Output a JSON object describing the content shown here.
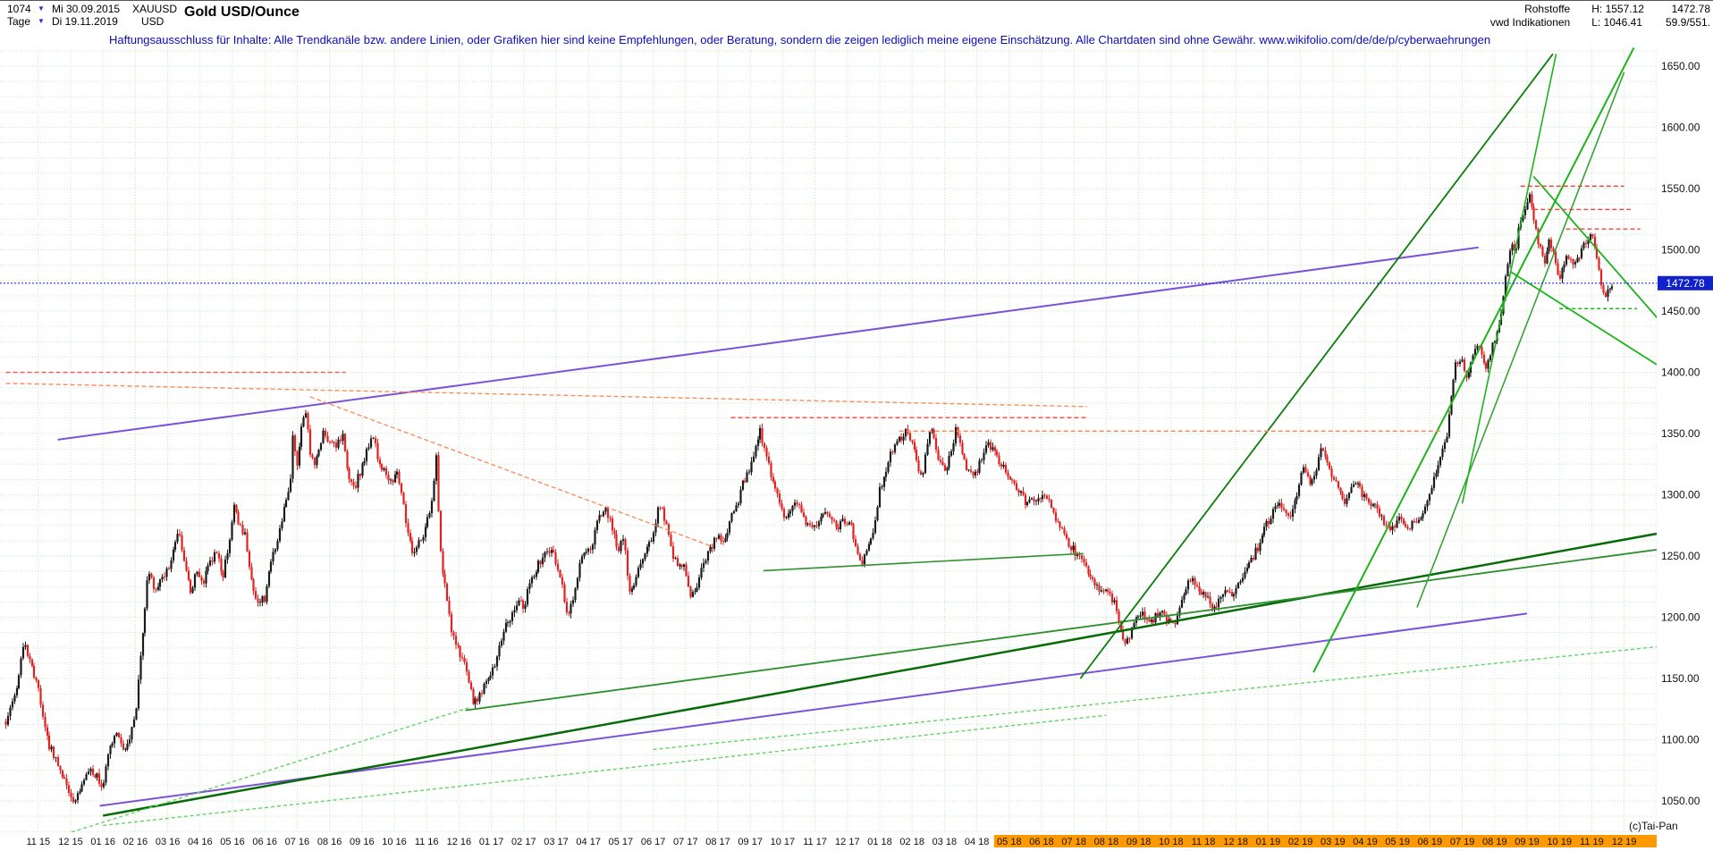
{
  "header": {
    "bar_count": "1074",
    "start_date": "Mi 30.09.2015",
    "symbol": "XAUUSD",
    "title": "Gold USD/Ounce",
    "period": "Tage",
    "end_date": "Di 19.11.2019",
    "currency": "USD",
    "category": "Rohstoffe",
    "source": "vwd Indikationen",
    "high": "H: 1557.12",
    "low": "L: 1046.41",
    "last": "1472.78",
    "bid_ask": "59.9/551."
  },
  "disclaimer": "Haftungsausschluss für Inhalte: Alle Trendkanäle bzw. andere Linien, oder Grafiken hier sind keine Empfehlungen, oder Beratung, sondern die zeigen lediglich meine eigene Einschätzung. Alle Chartdaten sind ohne Gewähr.  www.wikifolio.com/de/de/p/cyberwaehrungen",
  "watermark": "(c)Tai-Pan",
  "chart_data": {
    "type": "candlestick",
    "symbol": "XAUUSD",
    "title": "Gold USD/Ounce",
    "timeframe": "Tage (daily)",
    "date_range": [
      "2015-09-30",
      "2019-11-19"
    ],
    "high": 1557.12,
    "low": 1046.41,
    "last": 1472.78,
    "last_label": "1472.78",
    "y_axis": {
      "min": 1050,
      "max": 1650,
      "tick_step": 50,
      "minor_step": 12.5,
      "labels": [
        "1650.00",
        "1600.00",
        "1550.00",
        "1500.00",
        "1450.00",
        "1400.00",
        "1350.00",
        "1300.00",
        "1250.00",
        "1200.00",
        "1150.00",
        "1100.00",
        "1050.00"
      ]
    },
    "x_axis": {
      "unit_note": "t in months; t=1 corresponds to label '11 15' (Nov 2015)",
      "labels": [
        "11 15",
        "12 15",
        "01 16",
        "02 16",
        "03 16",
        "04 16",
        "05 16",
        "06 16",
        "07 16",
        "08 16",
        "09 16",
        "10 16",
        "11 16",
        "12 16",
        "01 17",
        "02 17",
        "03 17",
        "04 17",
        "05 17",
        "06 17",
        "07 17",
        "08 17",
        "09 17",
        "10 17",
        "11 17",
        "12 17",
        "01 18",
        "02 18",
        "03 18",
        "04 18",
        "05 18",
        "06 18",
        "07 18",
        "08 18",
        "09 18",
        "10 18",
        "11 18",
        "12 18",
        "01 19",
        "02 19",
        "03 19",
        "04 19",
        "05 19",
        "06 19",
        "07 19",
        "08 19",
        "09 19",
        "10 19",
        "11 19",
        "12 19"
      ],
      "highlight_from_index": 30
    },
    "price_anchors": [
      [
        0,
        1115
      ],
      [
        0.3,
        1138
      ],
      [
        0.55,
        1180
      ],
      [
        0.8,
        1160
      ],
      [
        1,
        1142
      ],
      [
        1.3,
        1098
      ],
      [
        1.6,
        1080
      ],
      [
        1.9,
        1062
      ],
      [
        2.15,
        1048
      ],
      [
        2.4,
        1068
      ],
      [
        2.6,
        1078
      ],
      [
        2.8,
        1070
      ],
      [
        3,
        1062
      ],
      [
        3.2,
        1092
      ],
      [
        3.4,
        1108
      ],
      [
        3.6,
        1090
      ],
      [
        3.8,
        1098
      ],
      [
        4,
        1120
      ],
      [
        4.2,
        1180
      ],
      [
        4.4,
        1242
      ],
      [
        4.6,
        1222
      ],
      [
        4.8,
        1232
      ],
      [
        5,
        1238
      ],
      [
        5.2,
        1258
      ],
      [
        5.35,
        1270
      ],
      [
        5.5,
        1244
      ],
      [
        5.7,
        1222
      ],
      [
        5.9,
        1236
      ],
      [
        6.1,
        1228
      ],
      [
        6.3,
        1244
      ],
      [
        6.5,
        1256
      ],
      [
        6.7,
        1232
      ],
      [
        6.9,
        1262
      ],
      [
        7.05,
        1290
      ],
      [
        7.2,
        1276
      ],
      [
        7.4,
        1266
      ],
      [
        7.6,
        1228
      ],
      [
        7.8,
        1212
      ],
      [
        8,
        1216
      ],
      [
        8.2,
        1246
      ],
      [
        8.4,
        1262
      ],
      [
        8.6,
        1288
      ],
      [
        8.8,
        1310
      ],
      [
        8.87,
        1352
      ],
      [
        9,
        1322
      ],
      [
        9.15,
        1360
      ],
      [
        9.25,
        1370
      ],
      [
        9.4,
        1336
      ],
      [
        9.55,
        1324
      ],
      [
        9.7,
        1342
      ],
      [
        9.85,
        1352
      ],
      [
        10,
        1342
      ],
      [
        10.2,
        1338
      ],
      [
        10.4,
        1348
      ],
      [
        10.6,
        1316
      ],
      [
        10.8,
        1308
      ],
      [
        11,
        1322
      ],
      [
        11.2,
        1340
      ],
      [
        11.35,
        1348
      ],
      [
        11.5,
        1330
      ],
      [
        11.7,
        1318
      ],
      [
        11.9,
        1312
      ],
      [
        12.1,
        1318
      ],
      [
        12.25,
        1302
      ],
      [
        12.4,
        1268
      ],
      [
        12.6,
        1252
      ],
      [
        12.8,
        1262
      ],
      [
        13,
        1276
      ],
      [
        13.2,
        1298
      ],
      [
        13.3,
        1332
      ],
      [
        13.4,
        1258
      ],
      [
        13.6,
        1218
      ],
      [
        13.8,
        1186
      ],
      [
        14,
        1172
      ],
      [
        14.2,
        1158
      ],
      [
        14.45,
        1130
      ],
      [
        14.7,
        1138
      ],
      [
        14.9,
        1152
      ],
      [
        15.1,
        1158
      ],
      [
        15.35,
        1188
      ],
      [
        15.6,
        1200
      ],
      [
        15.8,
        1214
      ],
      [
        16,
        1208
      ],
      [
        16.2,
        1228
      ],
      [
        16.4,
        1240
      ],
      [
        16.6,
        1250
      ],
      [
        16.8,
        1256
      ],
      [
        17,
        1246
      ],
      [
        17.2,
        1226
      ],
      [
        17.35,
        1200
      ],
      [
        17.55,
        1218
      ],
      [
        17.75,
        1246
      ],
      [
        17.9,
        1252
      ],
      [
        18.1,
        1254
      ],
      [
        18.3,
        1282
      ],
      [
        18.5,
        1290
      ],
      [
        18.7,
        1276
      ],
      [
        18.9,
        1254
      ],
      [
        19.1,
        1266
      ],
      [
        19.25,
        1220
      ],
      [
        19.4,
        1226
      ],
      [
        19.6,
        1242
      ],
      [
        19.8,
        1256
      ],
      [
        20,
        1266
      ],
      [
        20.2,
        1294
      ],
      [
        20.4,
        1276
      ],
      [
        20.6,
        1250
      ],
      [
        20.8,
        1242
      ],
      [
        21,
        1240
      ],
      [
        21.15,
        1214
      ],
      [
        21.35,
        1226
      ],
      [
        21.6,
        1248
      ],
      [
        21.8,
        1258
      ],
      [
        22,
        1268
      ],
      [
        22.2,
        1258
      ],
      [
        22.4,
        1282
      ],
      [
        22.6,
        1292
      ],
      [
        22.8,
        1312
      ],
      [
        23,
        1322
      ],
      [
        23.15,
        1338
      ],
      [
        23.3,
        1352
      ],
      [
        23.5,
        1334
      ],
      [
        23.7,
        1310
      ],
      [
        23.9,
        1294
      ],
      [
        24.1,
        1278
      ],
      [
        24.3,
        1290
      ],
      [
        24.5,
        1296
      ],
      [
        24.7,
        1278
      ],
      [
        24.9,
        1270
      ],
      [
        25.1,
        1276
      ],
      [
        25.3,
        1286
      ],
      [
        25.5,
        1278
      ],
      [
        25.7,
        1274
      ],
      [
        25.9,
        1280
      ],
      [
        26.1,
        1276
      ],
      [
        26.3,
        1252
      ],
      [
        26.45,
        1240
      ],
      [
        26.6,
        1258
      ],
      [
        26.8,
        1272
      ],
      [
        27,
        1304
      ],
      [
        27.2,
        1320
      ],
      [
        27.4,
        1338
      ],
      [
        27.6,
        1344
      ],
      [
        27.8,
        1354
      ],
      [
        28,
        1340
      ],
      [
        28.15,
        1330
      ],
      [
        28.3,
        1310
      ],
      [
        28.5,
        1348
      ],
      [
        28.65,
        1354
      ],
      [
        28.8,
        1330
      ],
      [
        29,
        1320
      ],
      [
        29.2,
        1332
      ],
      [
        29.35,
        1352
      ],
      [
        29.5,
        1340
      ],
      [
        29.7,
        1322
      ],
      [
        29.9,
        1312
      ],
      [
        30.1,
        1326
      ],
      [
        30.3,
        1344
      ],
      [
        30.5,
        1336
      ],
      [
        30.7,
        1326
      ],
      [
        30.9,
        1318
      ],
      [
        31.1,
        1310
      ],
      [
        31.3,
        1302
      ],
      [
        31.5,
        1294
      ],
      [
        31.7,
        1298
      ],
      [
        31.9,
        1296
      ],
      [
        32.1,
        1300
      ],
      [
        32.3,
        1290
      ],
      [
        32.5,
        1278
      ],
      [
        32.7,
        1268
      ],
      [
        32.9,
        1258
      ],
      [
        33.1,
        1250
      ],
      [
        33.3,
        1244
      ],
      [
        33.5,
        1232
      ],
      [
        33.7,
        1224
      ],
      [
        33.9,
        1222
      ],
      [
        34.1,
        1218
      ],
      [
        34.3,
        1210
      ],
      [
        34.55,
        1176
      ],
      [
        34.7,
        1184
      ],
      [
        34.9,
        1196
      ],
      [
        35.1,
        1202
      ],
      [
        35.3,
        1194
      ],
      [
        35.5,
        1200
      ],
      [
        35.7,
        1206
      ],
      [
        35.9,
        1196
      ],
      [
        36.1,
        1194
      ],
      [
        36.3,
        1212
      ],
      [
        36.5,
        1226
      ],
      [
        36.7,
        1230
      ],
      [
        36.9,
        1222
      ],
      [
        37.1,
        1216
      ],
      [
        37.3,
        1204
      ],
      [
        37.5,
        1214
      ],
      [
        37.7,
        1224
      ],
      [
        37.9,
        1220
      ],
      [
        38.1,
        1226
      ],
      [
        38.3,
        1240
      ],
      [
        38.5,
        1248
      ],
      [
        38.7,
        1258
      ],
      [
        38.9,
        1272
      ],
      [
        39.1,
        1284
      ],
      [
        39.3,
        1292
      ],
      [
        39.5,
        1286
      ],
      [
        39.7,
        1280
      ],
      [
        39.9,
        1302
      ],
      [
        40.1,
        1322
      ],
      [
        40.3,
        1310
      ],
      [
        40.5,
        1320
      ],
      [
        40.65,
        1340
      ],
      [
        40.8,
        1326
      ],
      [
        41,
        1312
      ],
      [
        41.2,
        1306
      ],
      [
        41.35,
        1292
      ],
      [
        41.5,
        1300
      ],
      [
        41.7,
        1312
      ],
      [
        41.9,
        1302
      ],
      [
        42.1,
        1292
      ],
      [
        42.3,
        1290
      ],
      [
        42.5,
        1282
      ],
      [
        42.7,
        1272
      ],
      [
        42.9,
        1276
      ],
      [
        43.1,
        1284
      ],
      [
        43.3,
        1272
      ],
      [
        43.5,
        1278
      ],
      [
        43.7,
        1282
      ],
      [
        43.9,
        1296
      ],
      [
        44.1,
        1310
      ],
      [
        44.3,
        1330
      ],
      [
        44.5,
        1342
      ],
      [
        44.65,
        1382
      ],
      [
        44.8,
        1408
      ],
      [
        45,
        1412
      ],
      [
        45.15,
        1394
      ],
      [
        45.3,
        1412
      ],
      [
        45.45,
        1426
      ],
      [
        45.6,
        1414
      ],
      [
        45.75,
        1402
      ],
      [
        45.9,
        1418
      ],
      [
        46.05,
        1432
      ],
      [
        46.2,
        1446
      ],
      [
        46.35,
        1478
      ],
      [
        46.5,
        1508
      ],
      [
        46.65,
        1498
      ],
      [
        46.8,
        1526
      ],
      [
        46.95,
        1532
      ],
      [
        47.1,
        1546
      ],
      [
        47.25,
        1518
      ],
      [
        47.4,
        1500
      ],
      [
        47.55,
        1492
      ],
      [
        47.7,
        1508
      ],
      [
        47.85,
        1496
      ],
      [
        48,
        1474
      ],
      [
        48.15,
        1488
      ],
      [
        48.3,
        1496
      ],
      [
        48.45,
        1488
      ],
      [
        48.6,
        1492
      ],
      [
        48.75,
        1502
      ],
      [
        48.9,
        1512
      ],
      [
        49.05,
        1508
      ],
      [
        49.2,
        1490
      ],
      [
        49.3,
        1470
      ],
      [
        49.4,
        1458
      ],
      [
        49.5,
        1466
      ],
      [
        49.63,
        1472.78
      ]
    ],
    "trend_lines": [
      {
        "t1": 1.6,
        "p1": 1345,
        "t2": 45.5,
        "p2": 1502,
        "c": "#7b52d8",
        "w": 2
      },
      {
        "t1": 2.9,
        "p1": 1046,
        "t2": 47.0,
        "p2": 1203,
        "c": "#7b52d8",
        "w": 2
      },
      {
        "t1": 3.0,
        "p1": 1038,
        "t2": 51.8,
        "p2": 1272,
        "c": "#076b07",
        "w": 2.5
      },
      {
        "t1": 14.2,
        "p1": 1124,
        "t2": 51.8,
        "p2": 1258,
        "c": "#2f8f2f",
        "w": 1.8
      },
      {
        "t1": 33.2,
        "p1": 1150,
        "t2": 47.8,
        "p2": 1660,
        "c": "#0a7d0a",
        "w": 1.8
      },
      {
        "t1": 40.4,
        "p1": 1155,
        "t2": 50.3,
        "p2": 1665,
        "c": "#1cb31c",
        "w": 2
      },
      {
        "t1": 43.6,
        "p1": 1208,
        "t2": 50.0,
        "p2": 1645,
        "c": "#35a335",
        "w": 1.6
      },
      {
        "t1": 45.0,
        "p1": 1293,
        "t2": 47.9,
        "p2": 1660,
        "c": "#1cb31c",
        "w": 1.6
      },
      {
        "t1": 47.2,
        "p1": 1560,
        "t2": 51.5,
        "p2": 1430,
        "c": "#1cb31c",
        "w": 1.8
      },
      {
        "t1": 46.5,
        "p1": 1482,
        "t2": 51.5,
        "p2": 1398,
        "c": "#1cb31c",
        "w": 1.8
      },
      {
        "t1": 46.8,
        "p1": 1552,
        "t2": 50.0,
        "p2": 1552,
        "c": "#ff4040",
        "w": 1.4,
        "d": "5 3"
      },
      {
        "t1": 47.2,
        "p1": 1533,
        "t2": 50.2,
        "p2": 1533,
        "c": "#ff4040",
        "w": 1.4,
        "d": "5 3"
      },
      {
        "t1": 48.2,
        "p1": 1517,
        "t2": 50.5,
        "p2": 1517,
        "c": "#ff4040",
        "w": 1.4,
        "d": "5 3"
      },
      {
        "t1": 0.0,
        "p1": 1400,
        "t2": 10.5,
        "p2": 1400,
        "c": "#ff5a5a",
        "w": 1.4,
        "d": "5 3"
      },
      {
        "t1": 0.0,
        "p1": 1391,
        "t2": 33.4,
        "p2": 1372,
        "c": "#ff8a5a",
        "w": 1.4,
        "d": "5 3"
      },
      {
        "t1": 9.4,
        "p1": 1380,
        "t2": 21.8,
        "p2": 1258,
        "c": "#ff8a5a",
        "w": 1.4,
        "d": "5 3"
      },
      {
        "t1": 22.4,
        "p1": 1363,
        "t2": 33.4,
        "p2": 1363,
        "c": "#ff4040",
        "w": 1.4,
        "d": "5 3"
      },
      {
        "t1": 27.6,
        "p1": 1352,
        "t2": 44.4,
        "p2": 1352,
        "c": "#ff8a5a",
        "w": 1.4,
        "d": "5 3"
      },
      {
        "t1": 3.0,
        "p1": 1030,
        "t2": 34.0,
        "p2": 1120,
        "c": "#5fd65f",
        "w": 1.4,
        "d": "4 3"
      },
      {
        "t1": 20.0,
        "p1": 1092,
        "t2": 51.8,
        "p2": 1178,
        "c": "#5fd65f",
        "w": 1.4,
        "d": "4 3"
      },
      {
        "t1": 1.84,
        "p1": 1023,
        "t2": 14.3,
        "p2": 1126,
        "c": "#5fd65f",
        "w": 1.4,
        "d": "4 3"
      },
      {
        "t1": 23.4,
        "p1": 1238,
        "t2": 33.3,
        "p2": 1252,
        "c": "#2f8f2f",
        "w": 1.6
      },
      {
        "t1": 48.0,
        "p1": 1452,
        "t2": 50.4,
        "p2": 1452,
        "c": "#1cb31c",
        "w": 1.4,
        "d": "4 3"
      }
    ],
    "colors": {
      "grid": "#c6e6c6",
      "up": "#1a1a1a",
      "down": "#e22222",
      "last_line": "#2230d0",
      "last_bg": "#1122cc",
      "axis_highlight": "#ff9900"
    }
  }
}
